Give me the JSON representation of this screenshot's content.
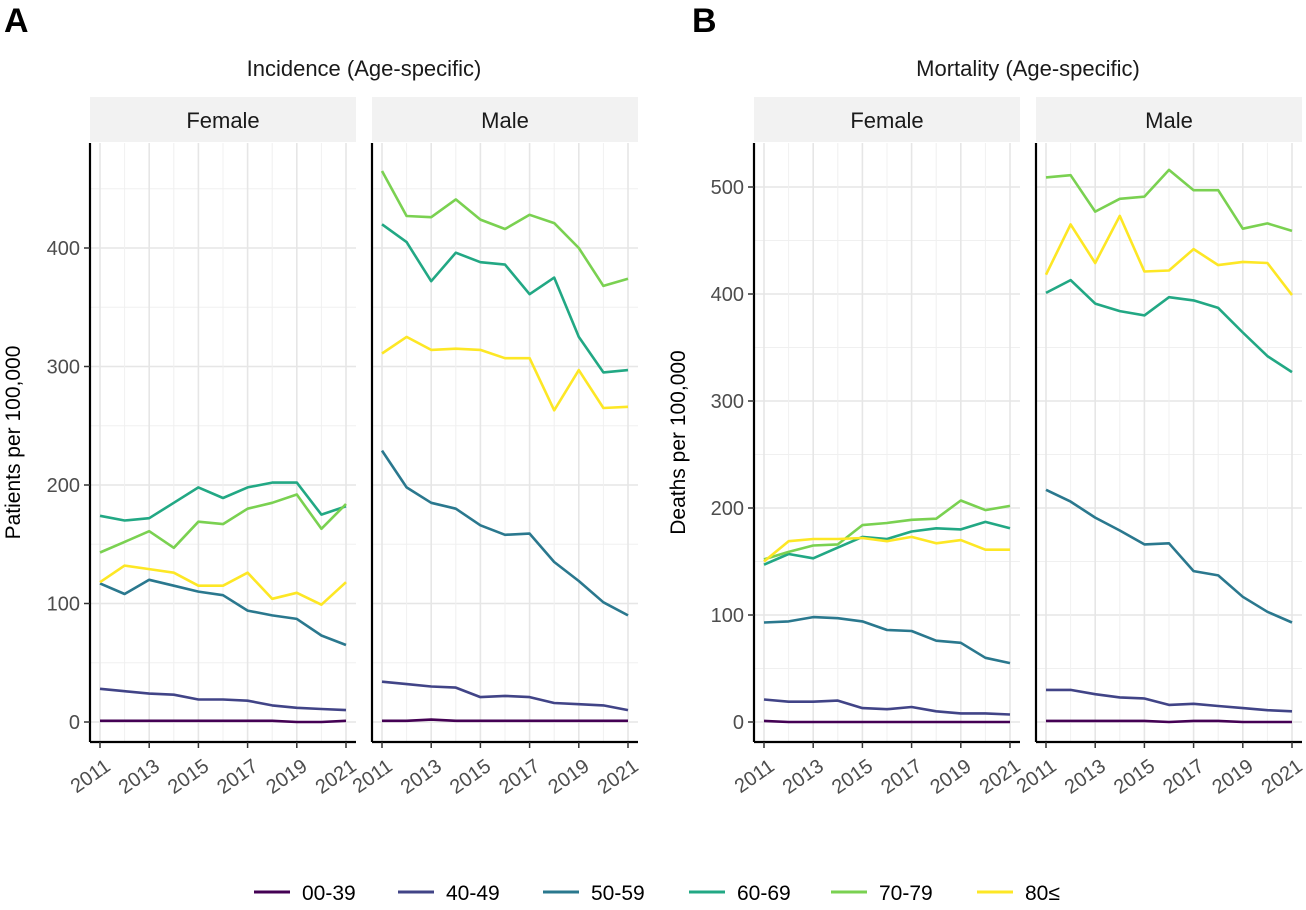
{
  "legend": [
    {
      "label": "00-39",
      "color": "#440154"
    },
    {
      "label": "40-49",
      "color": "#414487"
    },
    {
      "label": "50-59",
      "color": "#2A788E"
    },
    {
      "label": "60-69",
      "color": "#22A884"
    },
    {
      "label": "70-79",
      "color": "#7AD151"
    },
    {
      "label": "80≤",
      "color": "#FDE725"
    }
  ],
  "chart_data": [
    {
      "panel_letter": "A",
      "type": "line",
      "title": "Incidence (Age-specific)",
      "ylabel": "Patients per 100,000",
      "xlabel": "",
      "ylim": [
        0,
        480
      ],
      "yticks": [
        0,
        100,
        200,
        300,
        400
      ],
      "x": [
        2011,
        2012,
        2013,
        2014,
        2015,
        2016,
        2017,
        2018,
        2019,
        2020,
        2021
      ],
      "xticks": [
        2011,
        2013,
        2015,
        2017,
        2019,
        2021
      ],
      "grid": true,
      "facets": [
        {
          "label": "Female",
          "series": [
            {
              "name": "00-39",
              "values": [
                1,
                1,
                1,
                1,
                1,
                1,
                1,
                1,
                0,
                0,
                1
              ]
            },
            {
              "name": "40-49",
              "values": [
                28,
                26,
                24,
                23,
                19,
                19,
                18,
                14,
                12,
                11,
                10
              ]
            },
            {
              "name": "50-59",
              "values": [
                117,
                108,
                120,
                115,
                110,
                107,
                94,
                90,
                87,
                73,
                65
              ]
            },
            {
              "name": "60-69",
              "values": [
                174,
                170,
                172,
                185,
                198,
                189,
                198,
                202,
                202,
                175,
                182
              ]
            },
            {
              "name": "70-79",
              "values": [
                143,
                152,
                161,
                147,
                169,
                167,
                180,
                185,
                192,
                163,
                184
              ]
            },
            {
              "name": "80≤",
              "values": [
                118,
                132,
                129,
                126,
                115,
                115,
                126,
                104,
                109,
                99,
                118
              ]
            }
          ]
        },
        {
          "label": "Male",
          "series": [
            {
              "name": "00-39",
              "values": [
                1,
                1,
                2,
                1,
                1,
                1,
                1,
                1,
                1,
                1,
                1
              ]
            },
            {
              "name": "40-49",
              "values": [
                34,
                32,
                30,
                29,
                21,
                22,
                21,
                16,
                15,
                14,
                10
              ]
            },
            {
              "name": "50-59",
              "values": [
                229,
                198,
                185,
                180,
                166,
                158,
                159,
                135,
                119,
                101,
                90
              ]
            },
            {
              "name": "60-69",
              "values": [
                420,
                405,
                372,
                396,
                388,
                386,
                361,
                375,
                325,
                295,
                297
              ]
            },
            {
              "name": "70-79",
              "values": [
                465,
                427,
                426,
                441,
                424,
                416,
                428,
                421,
                400,
                368,
                374
              ]
            },
            {
              "name": "80≤",
              "values": [
                311,
                325,
                314,
                315,
                314,
                307,
                307,
                263,
                297,
                265,
                266
              ]
            }
          ]
        }
      ]
    },
    {
      "panel_letter": "B",
      "type": "line",
      "title": "Mortality (Age-specific)",
      "ylabel": "Deaths per 100,000",
      "xlabel": "",
      "ylim": [
        0,
        540
      ],
      "yticks": [
        0,
        100,
        200,
        300,
        400,
        500
      ],
      "x": [
        2011,
        2012,
        2013,
        2014,
        2015,
        2016,
        2017,
        2018,
        2019,
        2020,
        2021
      ],
      "xticks": [
        2011,
        2013,
        2015,
        2017,
        2019,
        2021
      ],
      "grid": true,
      "facets": [
        {
          "label": "Female",
          "series": [
            {
              "name": "00-39",
              "values": [
                1,
                0,
                0,
                0,
                0,
                0,
                0,
                0,
                0,
                0,
                0
              ]
            },
            {
              "name": "40-49",
              "values": [
                21,
                19,
                19,
                20,
                13,
                12,
                14,
                10,
                8,
                8,
                7
              ]
            },
            {
              "name": "50-59",
              "values": [
                93,
                94,
                98,
                97,
                94,
                86,
                85,
                76,
                74,
                60,
                55
              ]
            },
            {
              "name": "60-69",
              "values": [
                147,
                157,
                153,
                163,
                173,
                171,
                178,
                181,
                180,
                187,
                181
              ]
            },
            {
              "name": "70-79",
              "values": [
                152,
                159,
                165,
                166,
                184,
                186,
                189,
                190,
                207,
                198,
                202
              ]
            },
            {
              "name": "80≤",
              "values": [
                150,
                169,
                171,
                171,
                172,
                169,
                173,
                167,
                170,
                161,
                161
              ]
            }
          ]
        },
        {
          "label": "Male",
          "series": [
            {
              "name": "00-39",
              "values": [
                1,
                1,
                1,
                1,
                1,
                0,
                1,
                1,
                0,
                0,
                0
              ]
            },
            {
              "name": "40-49",
              "values": [
                30,
                30,
                26,
                23,
                22,
                16,
                17,
                15,
                13,
                11,
                10
              ]
            },
            {
              "name": "50-59",
              "values": [
                217,
                206,
                191,
                179,
                166,
                167,
                141,
                137,
                117,
                103,
                93
              ]
            },
            {
              "name": "60-69",
              "values": [
                401,
                413,
                391,
                384,
                380,
                397,
                394,
                387,
                364,
                342,
                327
              ]
            },
            {
              "name": "70-79",
              "values": [
                509,
                511,
                477,
                489,
                491,
                516,
                497,
                497,
                461,
                466,
                459
              ]
            },
            {
              "name": "80≤",
              "values": [
                418,
                465,
                429,
                473,
                421,
                422,
                442,
                427,
                430,
                429,
                399
              ]
            }
          ]
        }
      ]
    }
  ]
}
